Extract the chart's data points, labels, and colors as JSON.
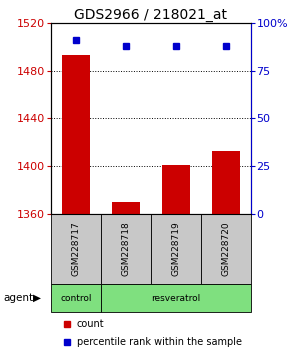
{
  "title": "GDS2966 / 218021_at",
  "samples": [
    "GSM228717",
    "GSM228718",
    "GSM228719",
    "GSM228720"
  ],
  "counts": [
    1493,
    1370,
    1401,
    1413
  ],
  "percentiles": [
    91,
    88,
    88,
    88
  ],
  "ylim_left": [
    1360,
    1520
  ],
  "ylim_right": [
    0,
    100
  ],
  "yticks_left": [
    1360,
    1400,
    1440,
    1480,
    1520
  ],
  "yticks_right": [
    0,
    25,
    50,
    75,
    100
  ],
  "ytick_labels_right": [
    "0",
    "25",
    "50",
    "75",
    "100%"
  ],
  "bar_color": "#cc0000",
  "dot_color": "#0000cc",
  "bg_color": "#ffffff",
  "sample_box_color": "#c8c8c8",
  "group_green": "#7fe07f",
  "legend_count_color": "#cc0000",
  "legend_pct_color": "#0000cc",
  "left_axis_color": "#cc0000",
  "right_axis_color": "#0000cc",
  "title_fontsize": 10,
  "tick_fontsize": 8,
  "bar_width": 0.55
}
